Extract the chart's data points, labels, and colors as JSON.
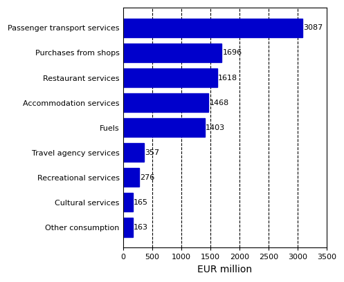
{
  "categories": [
    "Other consumption",
    "Cultural services",
    "Recreational services",
    "Travel agency services",
    "Fuels",
    "Accommodation services",
    "Restaurant services",
    "Purchases from shops",
    "Passenger transport services"
  ],
  "values": [
    163,
    165,
    276,
    357,
    1403,
    1468,
    1618,
    1696,
    3087
  ],
  "bar_color": "#0000cc",
  "xlabel": "EUR million",
  "xlim": [
    0,
    3500
  ],
  "xticks": [
    0,
    500,
    1000,
    1500,
    2000,
    2500,
    3000,
    3500
  ],
  "grid_ticks": [
    500,
    1000,
    1500,
    2000,
    2500,
    3000
  ],
  "grid_color": "#000000",
  "background_color": "#ffffff",
  "value_labels": [
    163,
    165,
    276,
    357,
    1403,
    1468,
    1618,
    1696,
    3087
  ],
  "fontsize_labels": 8,
  "fontsize_values": 8,
  "fontsize_xlabel": 10
}
